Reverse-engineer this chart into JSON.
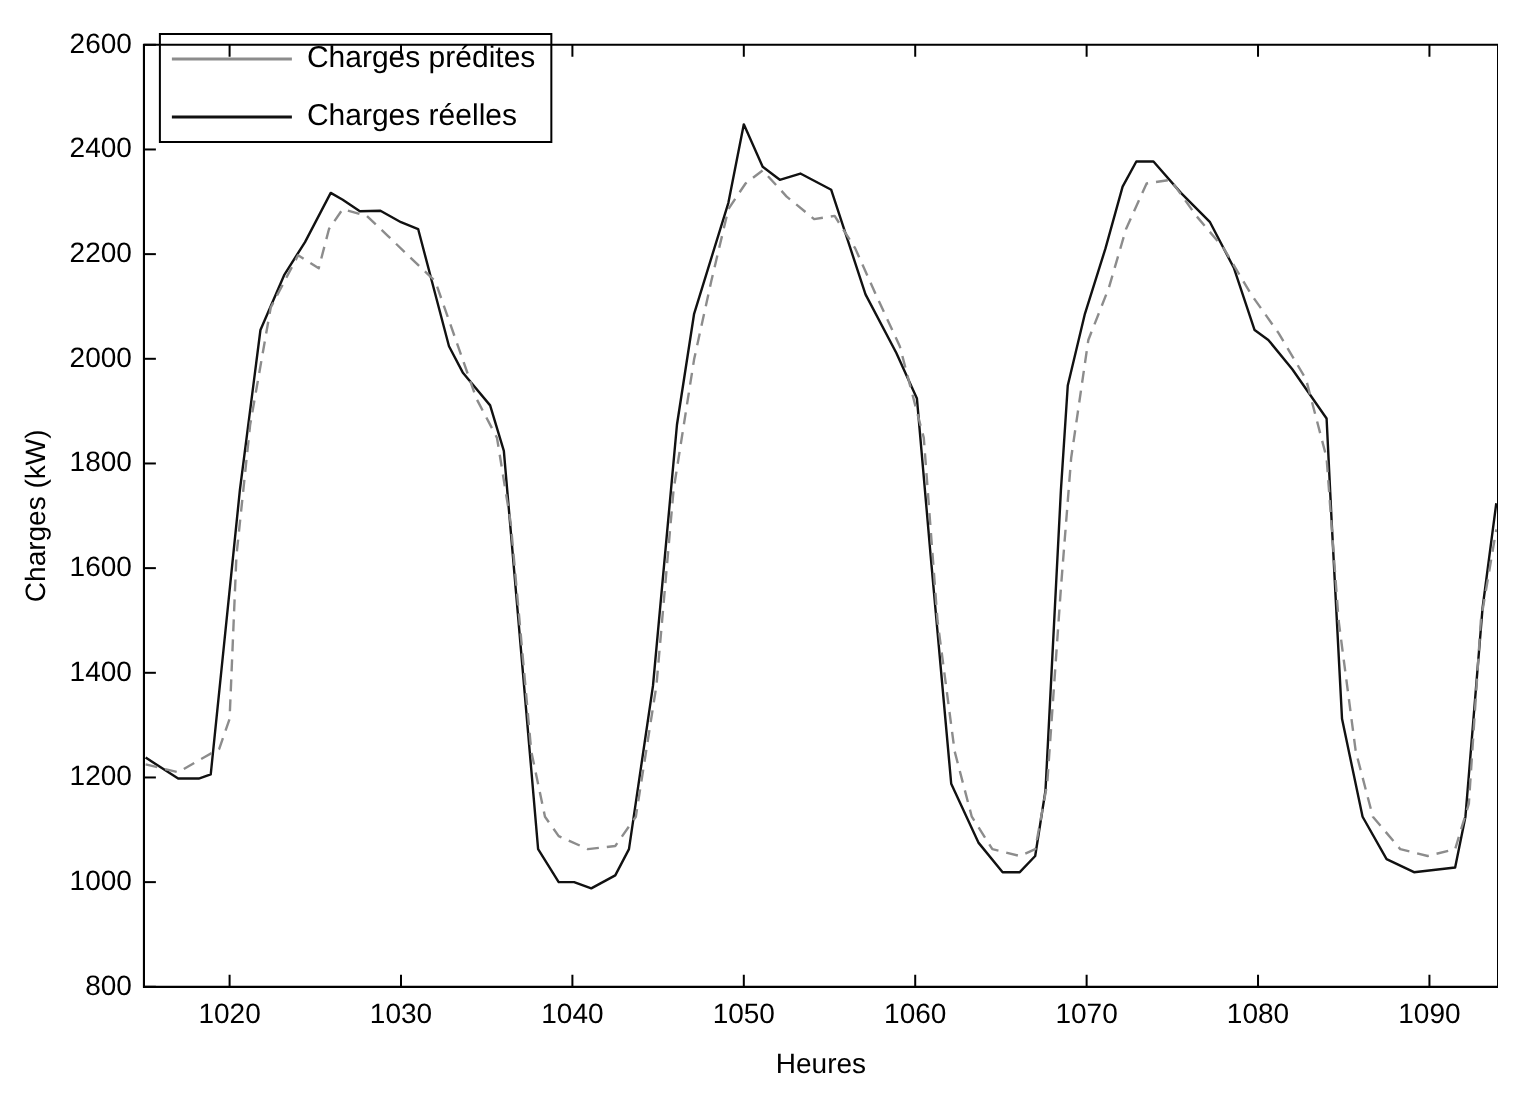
{
  "chart_data": {
    "type": "line",
    "xlabel": "Heures",
    "ylabel": "Charges (kW)",
    "xlim": [
      1015,
      1094
    ],
    "xticks": [
      1020,
      1030,
      1040,
      1050,
      1060,
      1070,
      1080,
      1090
    ],
    "ylim": [
      800,
      2600
    ],
    "yticks": [
      800,
      1000,
      1200,
      1400,
      1600,
      1800,
      2000,
      2200,
      2400,
      2600
    ],
    "grid": false,
    "legend": "top left",
    "marker": "none",
    "series": [
      {
        "name": "Charges prédites",
        "color": "#8c8c8c",
        "line_style": "dashed",
        "x": [
          1015.1,
          1017,
          1018.6,
          1019.4,
          1020,
          1020.4,
          1021.2,
          1022.4,
          1024,
          1025.2,
          1025.8,
          1026.6,
          1028,
          1029.2,
          1030.4,
          1032,
          1033.2,
          1034.4,
          1035.6,
          1036.4,
          1037.6,
          1038.4,
          1039.2,
          1040.9,
          1042.5,
          1043.7,
          1044.9,
          1045.9,
          1047.1,
          1048.1,
          1049.1,
          1050.1,
          1051.1,
          1052.5,
          1054.1,
          1055.3,
          1056.5,
          1057.7,
          1059.1,
          1060.5,
          1061.3,
          1062.3,
          1063.3,
          1064.5,
          1066.1,
          1067,
          1067.7,
          1068.5,
          1069.1,
          1070.1,
          1071.3,
          1072.3,
          1073.5,
          1074.9,
          1076.4,
          1078,
          1079.6,
          1081.2,
          1082.8,
          1084,
          1084.7,
          1085.7,
          1086.7,
          1088.3,
          1089.9,
          1091.5,
          1092.3,
          1093,
          1093.9
        ],
        "values": [
          1225,
          1210,
          1240,
          1255,
          1312,
          1624,
          1874,
          2098,
          2198,
          2173,
          2248,
          2286,
          2273,
          2236,
          2198,
          2148,
          2036,
          1924,
          1849,
          1687,
          1250,
          1125,
          1088,
          1063,
          1069,
          1125,
          1375,
          1749,
          1999,
          2148,
          2286,
          2335,
          2360,
          2310,
          2267,
          2273,
          2211,
          2123,
          2024,
          1849,
          1500,
          1250,
          1125,
          1063,
          1050,
          1063,
          1188,
          1562,
          1811,
          2036,
          2136,
          2248,
          2335,
          2342,
          2273,
          2211,
          2123,
          2049,
          1961,
          1811,
          1500,
          1250,
          1125,
          1063,
          1050,
          1063,
          1150,
          1500,
          1674
        ]
      },
      {
        "name": "Charges réelles",
        "color": "#111111",
        "line_style": "solid",
        "x": [
          1015.1,
          1017,
          1018.2,
          1018.9,
          1020.6,
          1021.8,
          1023.2,
          1024.4,
          1025.9,
          1026.6,
          1027.6,
          1028.8,
          1030,
          1031,
          1032.8,
          1033.6,
          1035.2,
          1036,
          1038,
          1039.2,
          1040.1,
          1041.1,
          1042.5,
          1043.3,
          1044.7,
          1046.1,
          1047.1,
          1049.1,
          1050,
          1051.1,
          1052.1,
          1053.3,
          1055.1,
          1057.1,
          1058.9,
          1060.1,
          1060.9,
          1062.1,
          1063.7,
          1065.1,
          1066.1,
          1067,
          1067.6,
          1068.5,
          1068.9,
          1069.9,
          1071.1,
          1072.1,
          1072.9,
          1073.9,
          1075.5,
          1077.2,
          1078.6,
          1079.8,
          1080.6,
          1082,
          1084,
          1084.3,
          1084.9,
          1086.1,
          1087.5,
          1089.1,
          1091.5,
          1092.1,
          1093.1,
          1093.9
        ],
        "values": [
          1238,
          1198,
          1198,
          1206,
          1749,
          2055,
          2161,
          2223,
          2317,
          2304,
          2282,
          2283,
          2261,
          2248,
          2024,
          1974,
          1911,
          1824,
          1063,
          1000,
          1000,
          988,
          1013,
          1063,
          1375,
          1874,
          2086,
          2298,
          2448,
          2367,
          2342,
          2354,
          2323,
          2123,
          2011,
          1924,
          1624,
          1188,
          1075,
          1019,
          1019,
          1050,
          1175,
          1749,
          1949,
          2086,
          2211,
          2329,
          2377,
          2377,
          2317,
          2261,
          2173,
          2055,
          2036,
          1980,
          1886,
          1686,
          1312,
          1125,
          1044,
          1019,
          1028,
          1125,
          1524,
          1724
        ]
      }
    ]
  }
}
